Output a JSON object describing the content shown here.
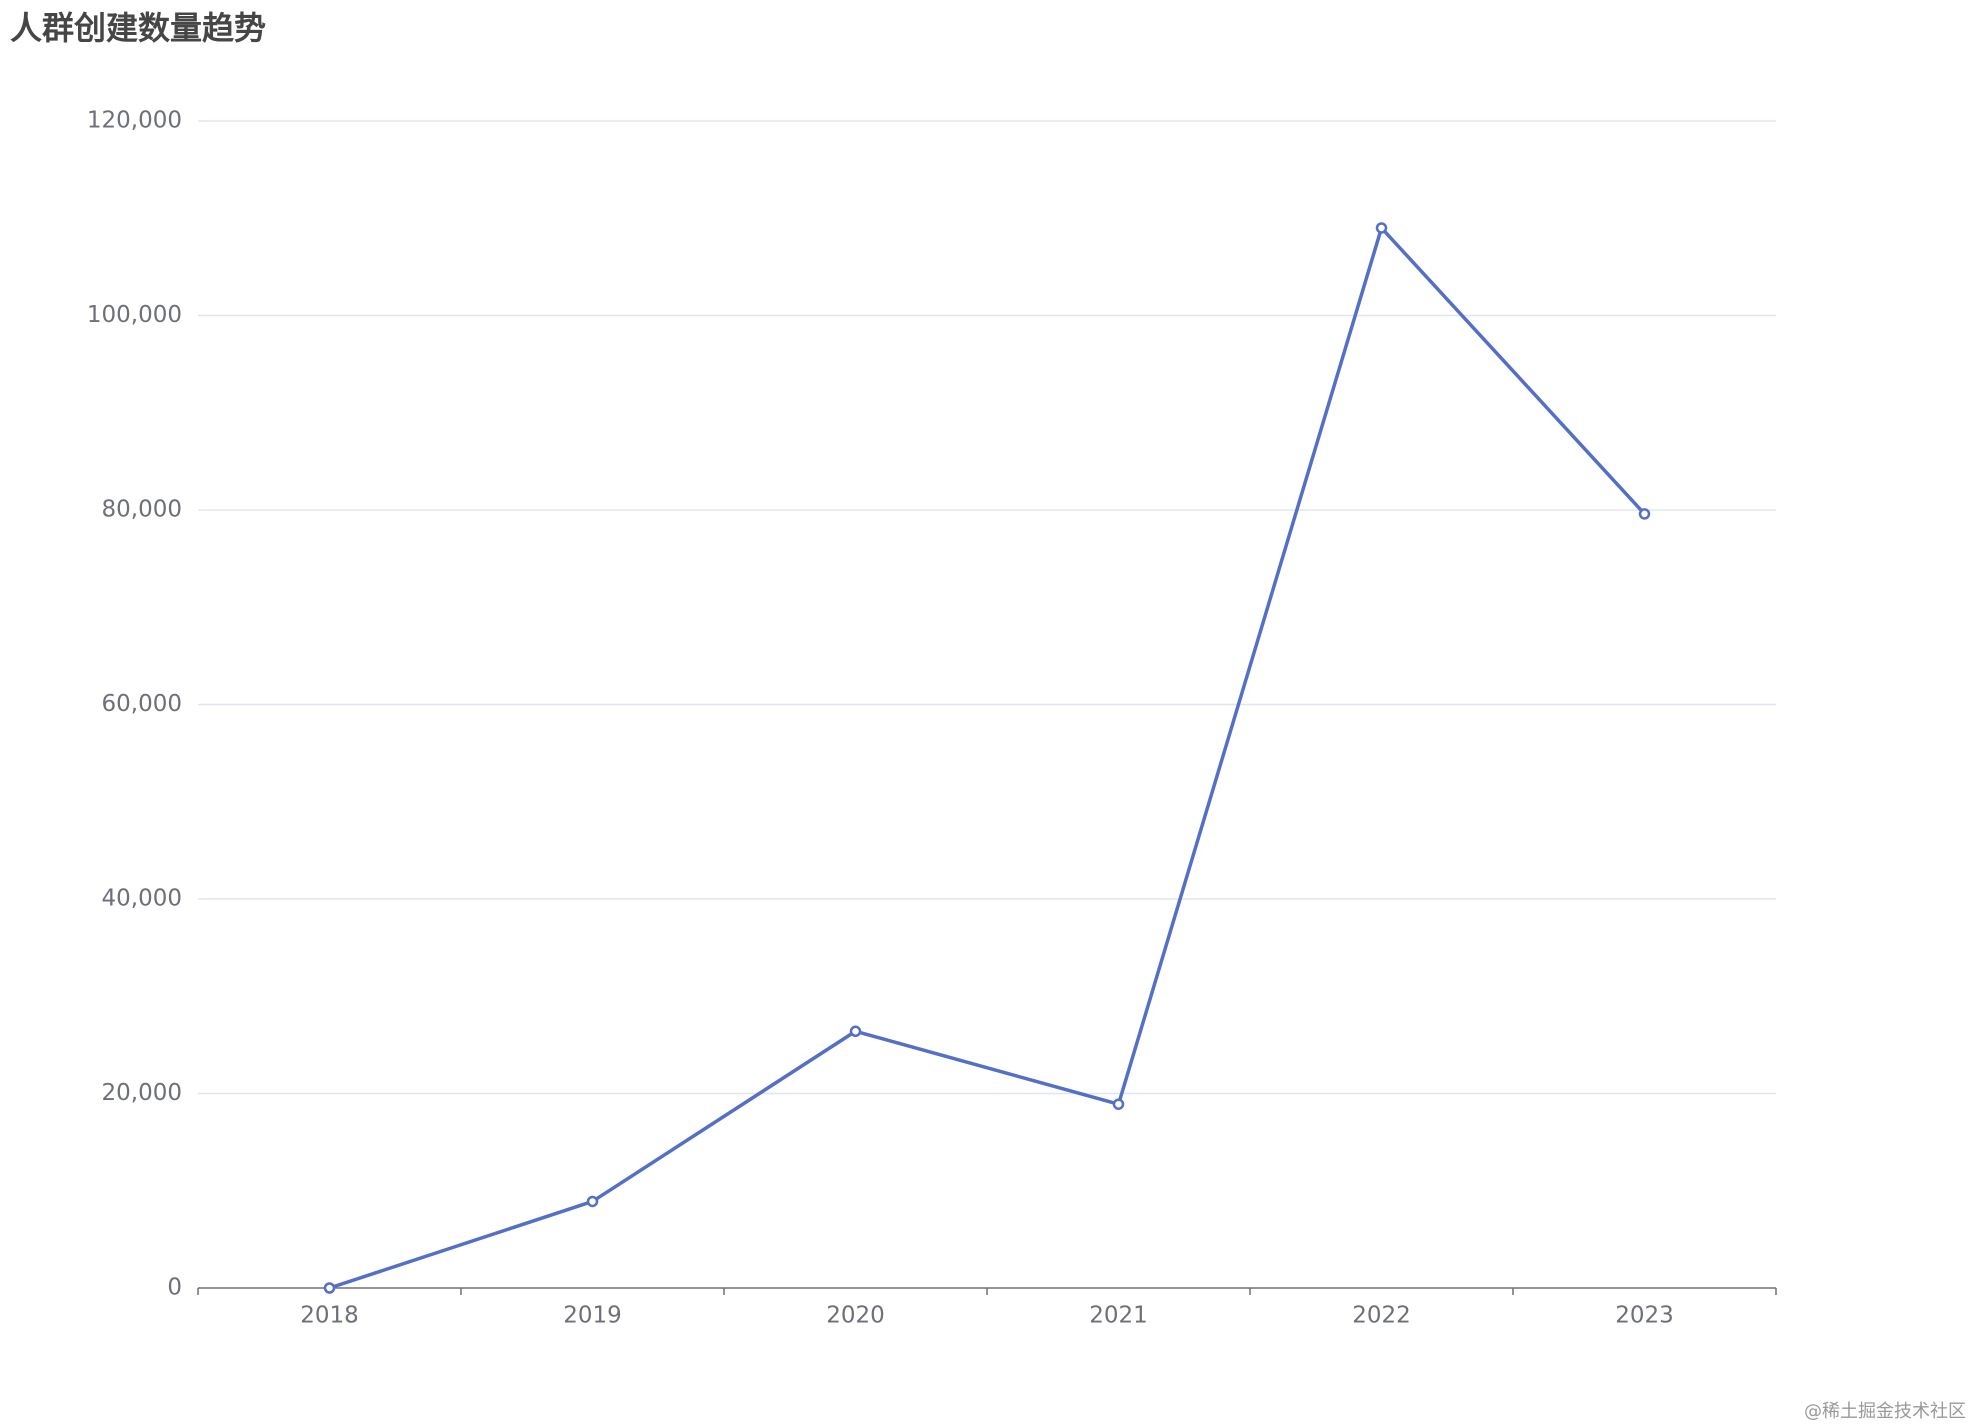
{
  "chart_data": {
    "type": "line",
    "title": "人群创建数量趋势",
    "categories": [
      "2018",
      "2019",
      "2020",
      "2021",
      "2022",
      "2023"
    ],
    "values": [
      0,
      8900,
      26400,
      18900,
      109000,
      79600
    ],
    "color": "#5470c6",
    "ylim": [
      0,
      120000
    ],
    "yticks": [
      0,
      {
        "value": 20000,
        "label": "20,000"
      },
      {
        "value": 40000,
        "label": "40,000"
      },
      {
        "value": 60000,
        "label": "60,000"
      },
      {
        "value": 80000,
        "label": "80,000"
      },
      {
        "value": 100000,
        "label": "100,000"
      },
      {
        "value": 120000,
        "label": "120,000"
      }
    ],
    "grid": true,
    "watermark": "@稀土掘金技术社区"
  }
}
